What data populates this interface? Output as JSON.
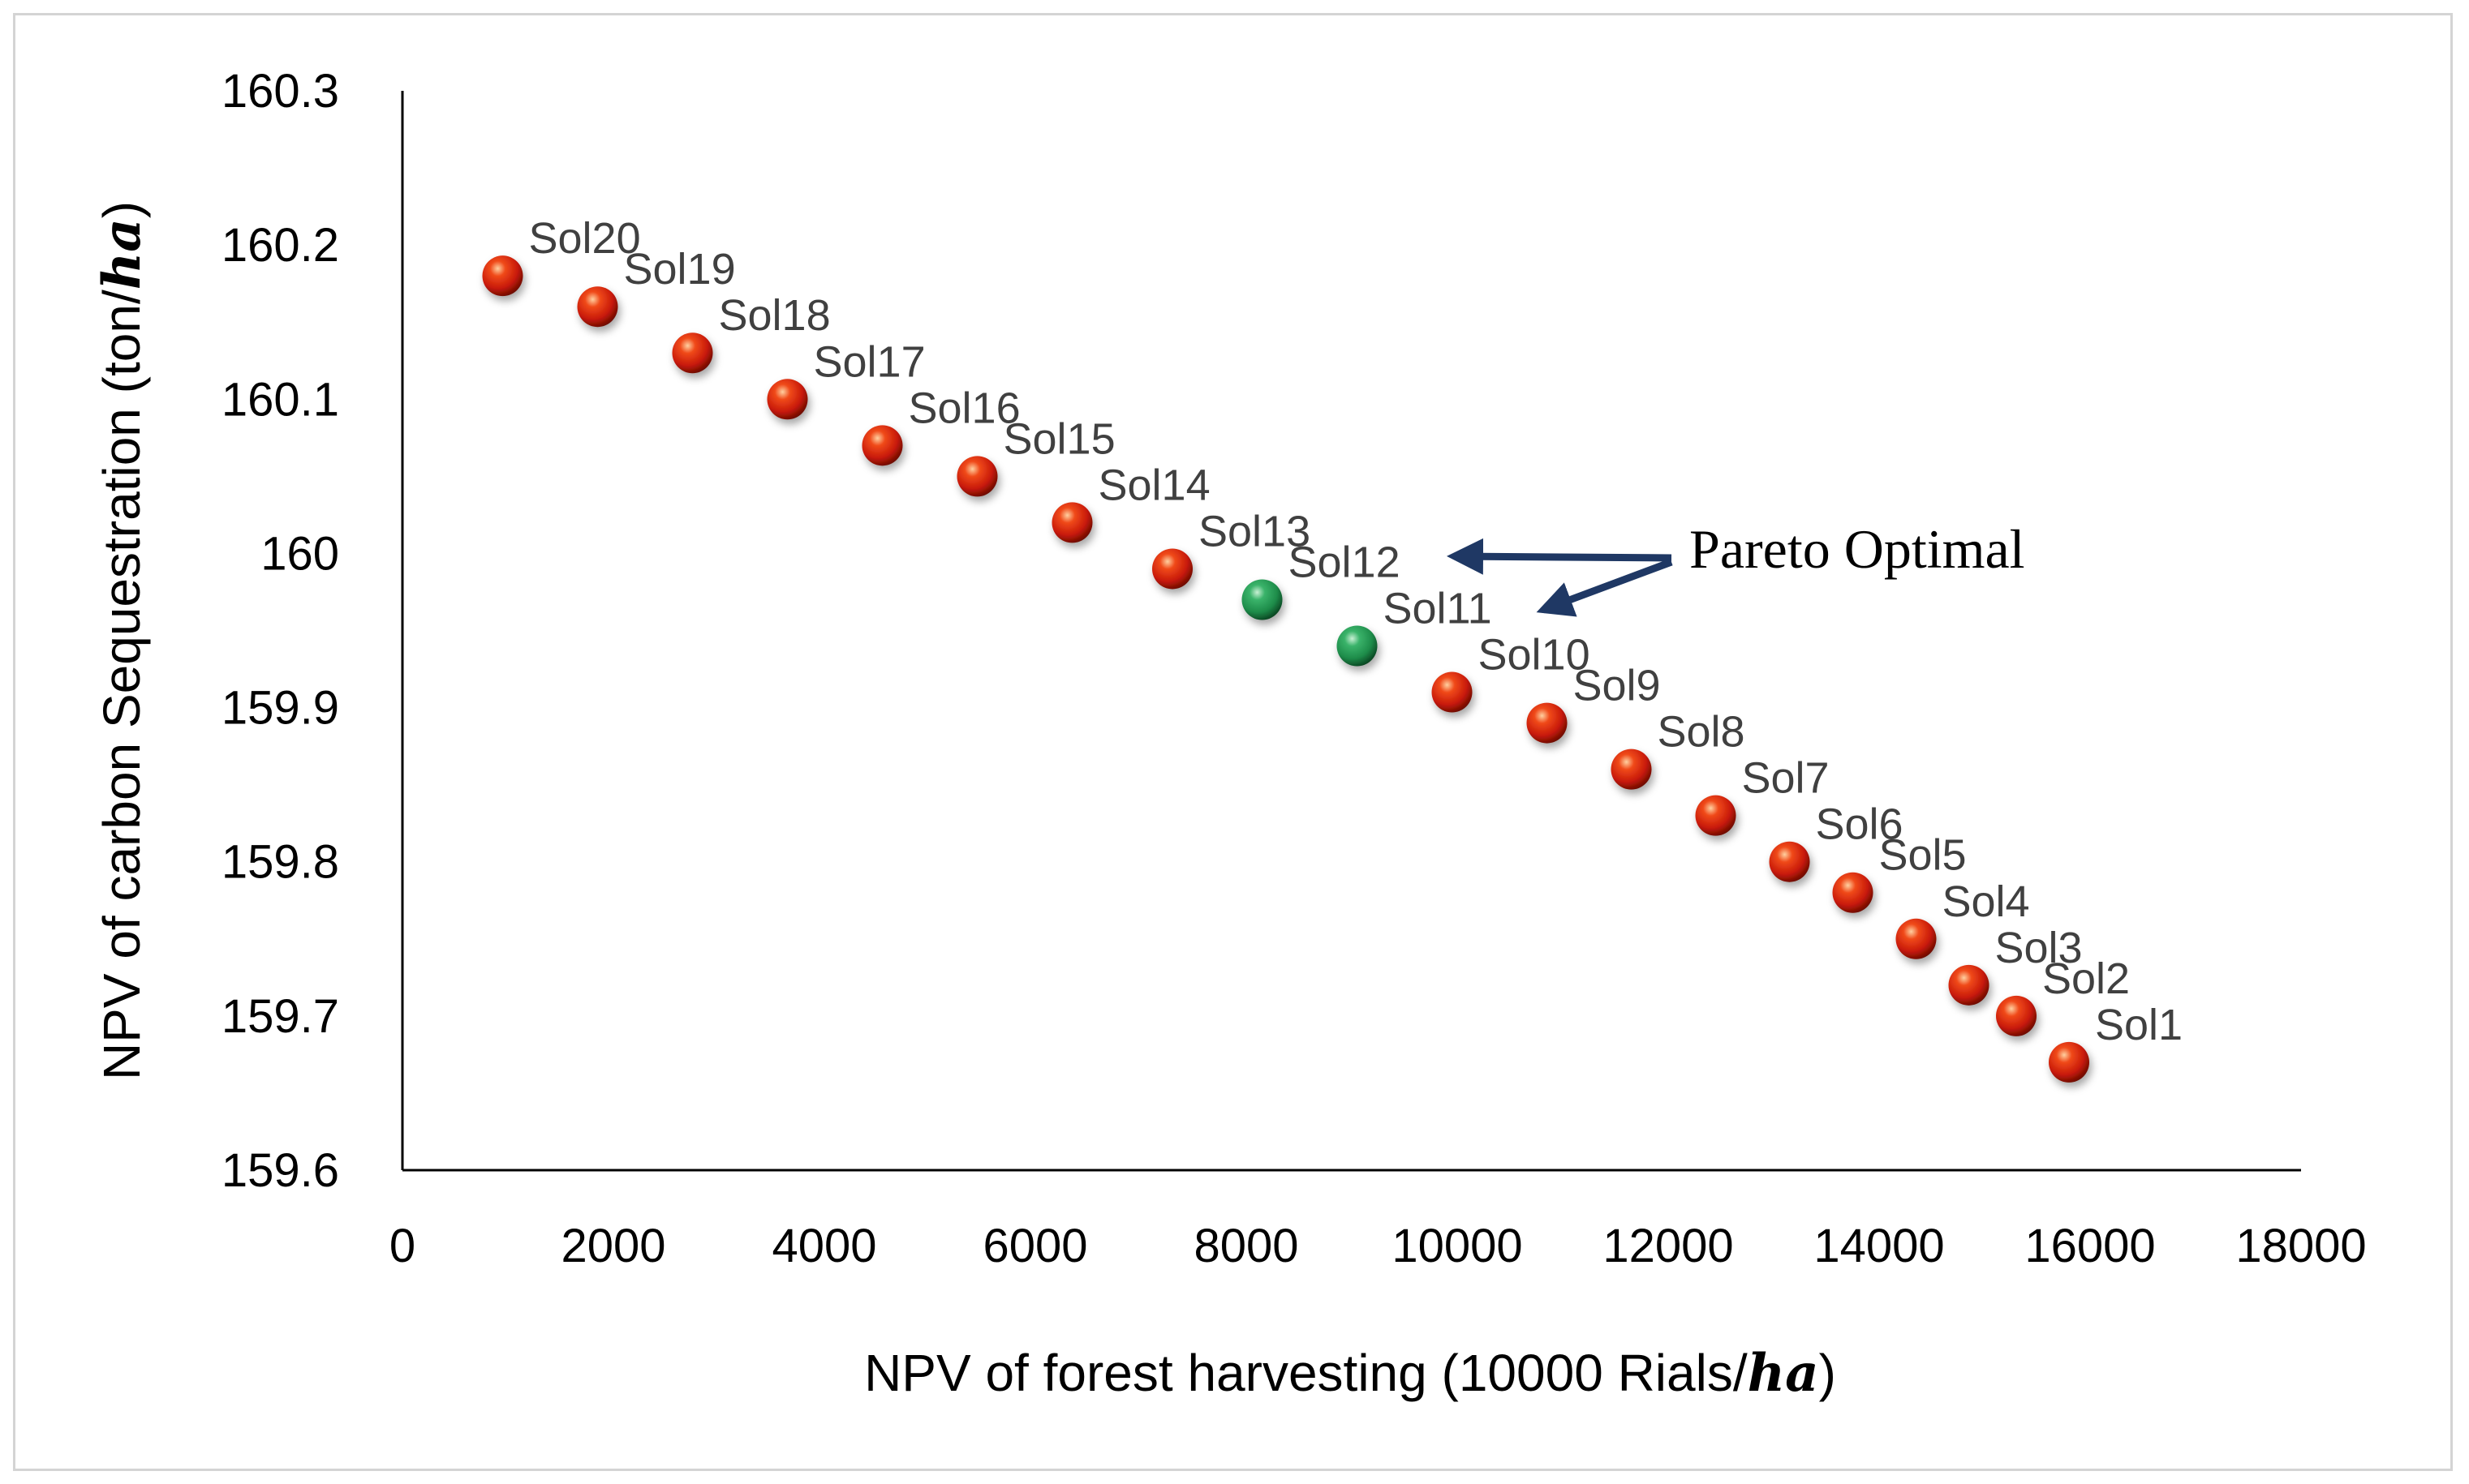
{
  "chart_data": {
    "type": "scatter",
    "xlabel": "NPV of forest harvesting  (10000 Rials/",
    "xlabel_unit": "ha",
    "xlabel_close": ")",
    "ylabel": "NPV of carbon Sequestration (ton/",
    "ylabel_unit": "ha",
    "ylabel_close": ")",
    "xlim": [
      0,
      18000
    ],
    "ylim": [
      159.6,
      160.3
    ],
    "x_ticks": [
      "0",
      "2000",
      "4000",
      "6000",
      "8000",
      "10000",
      "12000",
      "14000",
      "16000",
      "18000"
    ],
    "y_ticks": [
      "159.6",
      "159.7",
      "159.8",
      "159.9",
      "160",
      "160.1",
      "160.2",
      "160.3"
    ],
    "grid": false,
    "colors": {
      "regular": "#c81a0a",
      "pareto": "#1e8c4a",
      "arrow": "#1f3864"
    },
    "points": [
      {
        "label": "Sol1",
        "x": 15800,
        "y": 159.67,
        "pareto": false
      },
      {
        "label": "Sol2",
        "x": 15300,
        "y": 159.7,
        "pareto": false
      },
      {
        "label": "Sol3",
        "x": 14850,
        "y": 159.72,
        "pareto": false
      },
      {
        "label": "Sol4",
        "x": 14350,
        "y": 159.75,
        "pareto": false
      },
      {
        "label": "Sol5",
        "x": 13750,
        "y": 159.78,
        "pareto": false
      },
      {
        "label": "Sol6",
        "x": 13150,
        "y": 159.8,
        "pareto": false
      },
      {
        "label": "Sol7",
        "x": 12450,
        "y": 159.83,
        "pareto": false
      },
      {
        "label": "Sol8",
        "x": 11650,
        "y": 159.86,
        "pareto": false
      },
      {
        "label": "Sol9",
        "x": 10850,
        "y": 159.89,
        "pareto": false
      },
      {
        "label": "Sol10",
        "x": 9950,
        "y": 159.91,
        "pareto": false
      },
      {
        "label": "Sol11",
        "x": 9050,
        "y": 159.94,
        "pareto": true
      },
      {
        "label": "Sol12",
        "x": 8150,
        "y": 159.97,
        "pareto": true
      },
      {
        "label": "Sol13",
        "x": 7300,
        "y": 159.99,
        "pareto": false
      },
      {
        "label": "Sol14",
        "x": 6350,
        "y": 160.02,
        "pareto": false
      },
      {
        "label": "Sol15",
        "x": 5450,
        "y": 160.05,
        "pareto": false
      },
      {
        "label": "Sol16",
        "x": 4550,
        "y": 160.07,
        "pareto": false
      },
      {
        "label": "Sol17",
        "x": 3650,
        "y": 160.1,
        "pareto": false
      },
      {
        "label": "Sol18",
        "x": 2750,
        "y": 160.13,
        "pareto": false
      },
      {
        "label": "Sol19",
        "x": 1850,
        "y": 160.16,
        "pareto": false
      },
      {
        "label": "Sol20",
        "x": 950,
        "y": 160.18,
        "pareto": false
      }
    ],
    "annotation": {
      "text": "Pareto Optimal"
    }
  }
}
